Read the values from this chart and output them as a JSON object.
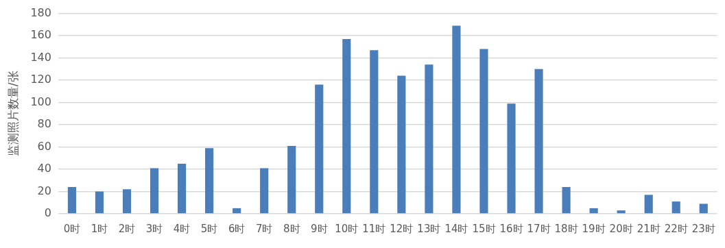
{
  "chart_data": {
    "type": "bar",
    "ylabel": "监测照片数量/张",
    "categories": [
      "0时",
      "1时",
      "2时",
      "3时",
      "4时",
      "5时",
      "6时",
      "7时",
      "8时",
      "9时",
      "10时",
      "11时",
      "12时",
      "13时",
      "14时",
      "15时",
      "16时",
      "17时",
      "18时",
      "19时",
      "20时",
      "21时",
      "22时",
      "23时"
    ],
    "values": [
      24,
      20,
      22,
      41,
      45,
      59,
      5,
      41,
      61,
      116,
      157,
      147,
      124,
      134,
      169,
      148,
      99,
      130,
      24,
      5,
      3,
      17,
      11,
      9
    ],
    "color": "#4a7ebb",
    "ylim": [
      0,
      180
    ],
    "yticks": [
      0,
      20,
      40,
      60,
      80,
      100,
      120,
      140,
      160,
      180
    ],
    "grid": "y",
    "legend": false
  }
}
